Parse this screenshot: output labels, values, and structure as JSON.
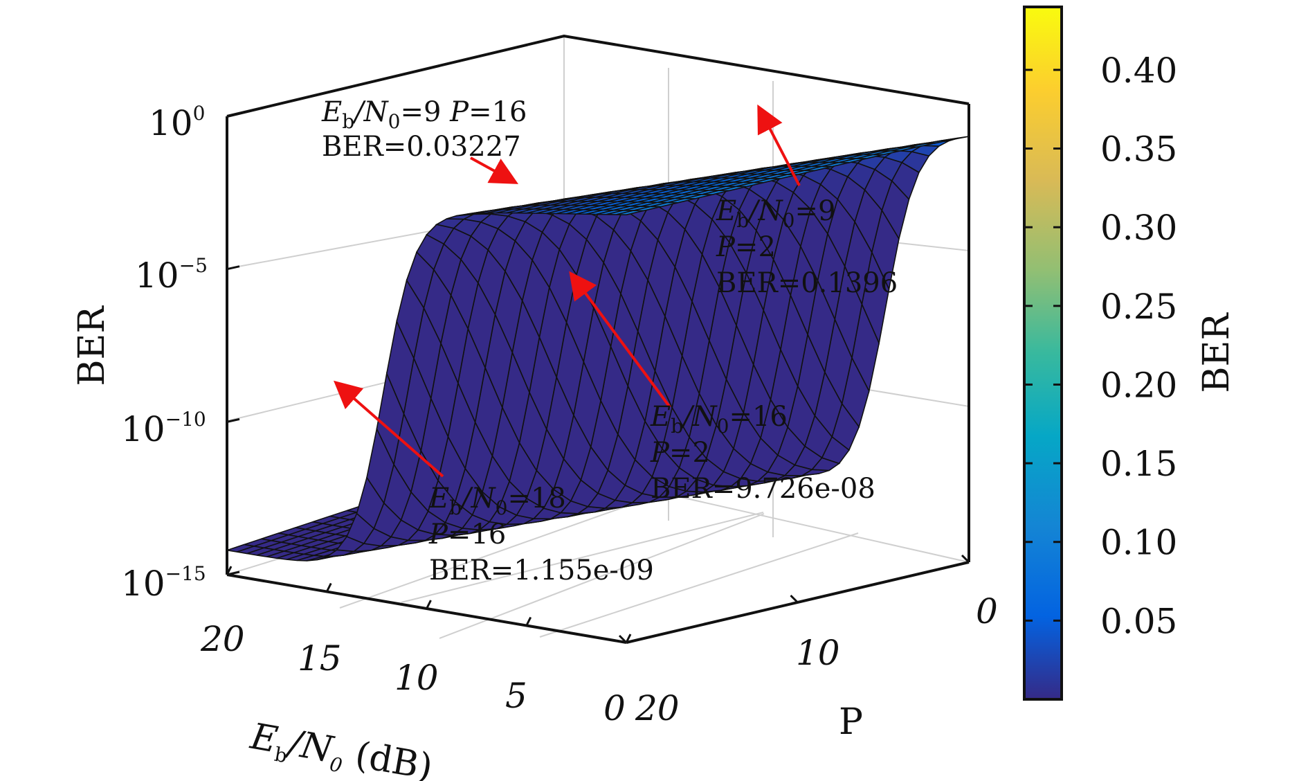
{
  "chart_data": {
    "type": "surface3d",
    "x_axis": {
      "label_main": "E",
      "label_sub": "b",
      "label_slash": "/N",
      "label_sub2": "0",
      "label_unit": " (dB)",
      "range": [
        0,
        20
      ],
      "ticks": [
        "20",
        "15",
        "10",
        "5",
        "0"
      ]
    },
    "y_axis": {
      "label": "P",
      "range": [
        0,
        20
      ],
      "ticks": [
        "0",
        "10",
        "20"
      ]
    },
    "z_axis": {
      "label": "BER",
      "scale": "log",
      "range": [
        1e-15,
        1
      ],
      "tick_base": [
        "10",
        "10",
        "10",
        "10"
      ],
      "tick_exp": [
        "0",
        "−5",
        "−10",
        "−15"
      ]
    },
    "colorbar": {
      "label": "BER",
      "range": [
        0,
        0.44
      ],
      "ticks": [
        "0.40",
        "0.35",
        "0.30",
        "0.25",
        "0.20",
        "0.15",
        "0.10",
        "0.05"
      ],
      "colormap": [
        "#352a87",
        "#0363e1",
        "#1485d4",
        "#06a7c6",
        "#38b99e",
        "#92bf73",
        "#d9ba56",
        "#fcce2e",
        "#f9fb0e"
      ]
    },
    "annotations": [
      {
        "line1_a": "E",
        "line1_sub": "b",
        "line1_b": "/N",
        "line1_sub2": "0",
        "line1_c": "=9   ",
        "line1_d": "P",
        "line1_e": "=16",
        "line2": "BER=0.03227",
        "ebn0": 9,
        "p": 16,
        "ber": 0.03227
      },
      {
        "line1_a": "E",
        "line1_sub": "b",
        "line1_b": "/N",
        "line1_sub2": "0",
        "line1_c": "=9",
        "line2_a": "P",
        "line2_b": "=2",
        "line3": "BER=0.1396",
        "ebn0": 9,
        "p": 2,
        "ber": 0.1396
      },
      {
        "line1_a": "E",
        "line1_sub": "b",
        "line1_b": "/N",
        "line1_sub2": "0",
        "line1_c": "=16",
        "line2_a": "P",
        "line2_b": "=2",
        "line3": "BER=9.726e-08",
        "ebn0": 16,
        "p": 2,
        "ber": 9.726e-08
      },
      {
        "line1_a": "E",
        "line1_sub": "b",
        "line1_b": "/N",
        "line1_sub2": "0",
        "line1_c": "=18",
        "line2_a": "P",
        "line2_b": "=16",
        "line3": "BER=1.155e-09",
        "ebn0": 18,
        "p": 16,
        "ber": 1.155e-09
      }
    ],
    "grid": true
  }
}
